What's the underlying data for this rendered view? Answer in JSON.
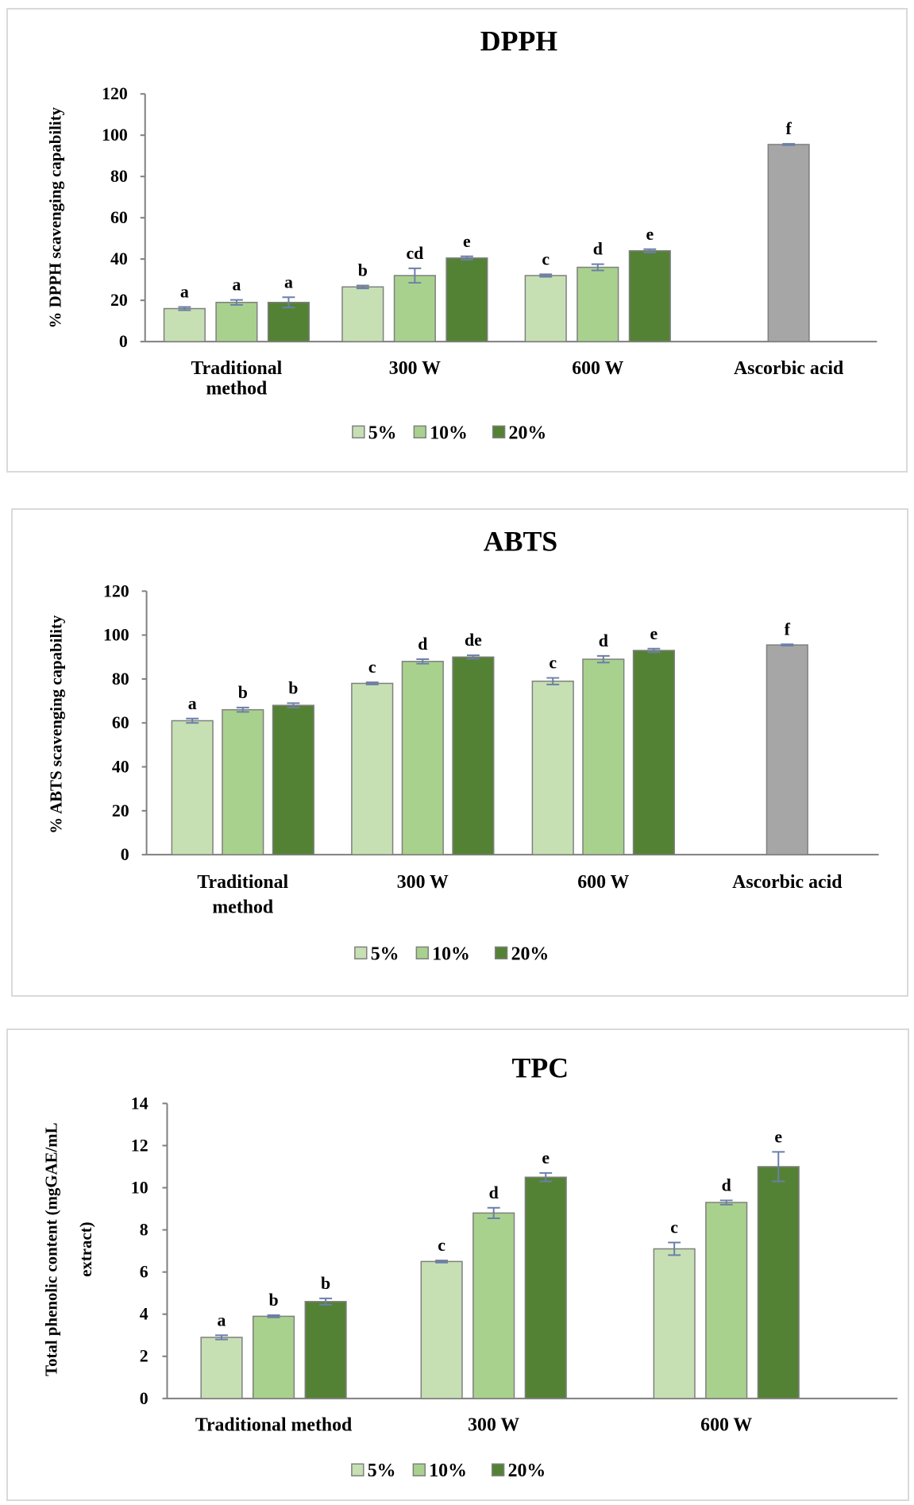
{
  "colors": {
    "c5": "#c6e0b4",
    "c10": "#a9d18e",
    "c20": "#548235",
    "ref": "#a6a6a6",
    "error": "#6b7fa8"
  },
  "legend": [
    "5%",
    "10%",
    "20%"
  ],
  "chart_data": [
    {
      "type": "bar",
      "title": "DPPH",
      "ylabel": "% DPPH scavenging capability",
      "ylim": [
        0,
        120
      ],
      "yticks": [
        "0",
        "20",
        "40",
        "60",
        "80",
        "100",
        "120"
      ],
      "groups": [
        {
          "label": [
            "Traditional",
            "method"
          ],
          "bars": [
            {
              "series": "5%",
              "value": 16,
              "err": 0.8,
              "letter": "a"
            },
            {
              "series": "10%",
              "value": 19,
              "err": 1.2,
              "letter": "a"
            },
            {
              "series": "20%",
              "value": 19,
              "err": 2.5,
              "letter": "a"
            }
          ]
        },
        {
          "label": [
            "300 W"
          ],
          "bars": [
            {
              "series": "5%",
              "value": 26.5,
              "err": 0.7,
              "letter": "b"
            },
            {
              "series": "10%",
              "value": 32,
              "err": 3.5,
              "letter": "cd"
            },
            {
              "series": "20%",
              "value": 40.5,
              "err": 0.8,
              "letter": "e"
            }
          ]
        },
        {
          "label": [
            "600 W"
          ],
          "bars": [
            {
              "series": "5%",
              "value": 32,
              "err": 0.6,
              "letter": "c"
            },
            {
              "series": "10%",
              "value": 36,
              "err": 1.5,
              "letter": "d"
            },
            {
              "series": "20%",
              "value": 44,
              "err": 0.8,
              "letter": "e"
            }
          ]
        },
        {
          "label": [
            "Ascorbic acid"
          ],
          "bars": [
            {
              "series": "Ascorbic acid",
              "value": 95.5,
              "err": 0.3,
              "letter": "f"
            }
          ]
        }
      ]
    },
    {
      "type": "bar",
      "title": "ABTS",
      "ylabel": "% ABTS scavenging capability",
      "ylim": [
        0,
        120
      ],
      "yticks": [
        "0",
        "20",
        "40",
        "60",
        "80",
        "100",
        "120"
      ],
      "groups": [
        {
          "label": [
            "Traditional",
            "method"
          ],
          "bars": [
            {
              "series": "5%",
              "value": 61,
              "err": 1,
              "letter": "a"
            },
            {
              "series": "10%",
              "value": 66,
              "err": 1,
              "letter": "b"
            },
            {
              "series": "20%",
              "value": 68,
              "err": 1,
              "letter": "b"
            }
          ]
        },
        {
          "label": [
            "300 W"
          ],
          "bars": [
            {
              "series": "5%",
              "value": 78,
              "err": 0.5,
              "letter": "c"
            },
            {
              "series": "10%",
              "value": 88,
              "err": 1,
              "letter": "d"
            },
            {
              "series": "20%",
              "value": 90,
              "err": 0.8,
              "letter": "de"
            }
          ]
        },
        {
          "label": [
            "600 W"
          ],
          "bars": [
            {
              "series": "5%",
              "value": 79,
              "err": 1.5,
              "letter": "c"
            },
            {
              "series": "10%",
              "value": 89,
              "err": 1.5,
              "letter": "d"
            },
            {
              "series": "20%",
              "value": 93,
              "err": 0.8,
              "letter": "e"
            }
          ]
        },
        {
          "label": [
            "Ascorbic acid"
          ],
          "bars": [
            {
              "series": "Ascorbic acid",
              "value": 95.5,
              "err": 0.3,
              "letter": "f"
            }
          ]
        }
      ]
    },
    {
      "type": "bar",
      "title": "TPC",
      "ylabel": [
        "Total phenolic content (mgGAE/mL",
        "extract)"
      ],
      "ylim": [
        0,
        14
      ],
      "yticks": [
        "0",
        "2",
        "4",
        "6",
        "8",
        "10",
        "12",
        "14"
      ],
      "groups": [
        {
          "label": [
            "Traditional method"
          ],
          "bars": [
            {
              "series": "5%",
              "value": 2.9,
              "err": 0.1,
              "letter": "a"
            },
            {
              "series": "10%",
              "value": 3.9,
              "err": 0.05,
              "letter": "b"
            },
            {
              "series": "20%",
              "value": 4.6,
              "err": 0.15,
              "letter": "b"
            }
          ]
        },
        {
          "label": [
            "300 W"
          ],
          "bars": [
            {
              "series": "5%",
              "value": 6.5,
              "err": 0.05,
              "letter": "c"
            },
            {
              "series": "10%",
              "value": 8.8,
              "err": 0.25,
              "letter": "d"
            },
            {
              "series": "20%",
              "value": 10.5,
              "err": 0.2,
              "letter": "e"
            }
          ]
        },
        {
          "label": [
            "600 W"
          ],
          "bars": [
            {
              "series": "5%",
              "value": 7.1,
              "err": 0.3,
              "letter": "c"
            },
            {
              "series": "10%",
              "value": 9.3,
              "err": 0.1,
              "letter": "d"
            },
            {
              "series": "20%",
              "value": 11,
              "err": 0.7,
              "letter": "e"
            }
          ]
        }
      ]
    }
  ]
}
